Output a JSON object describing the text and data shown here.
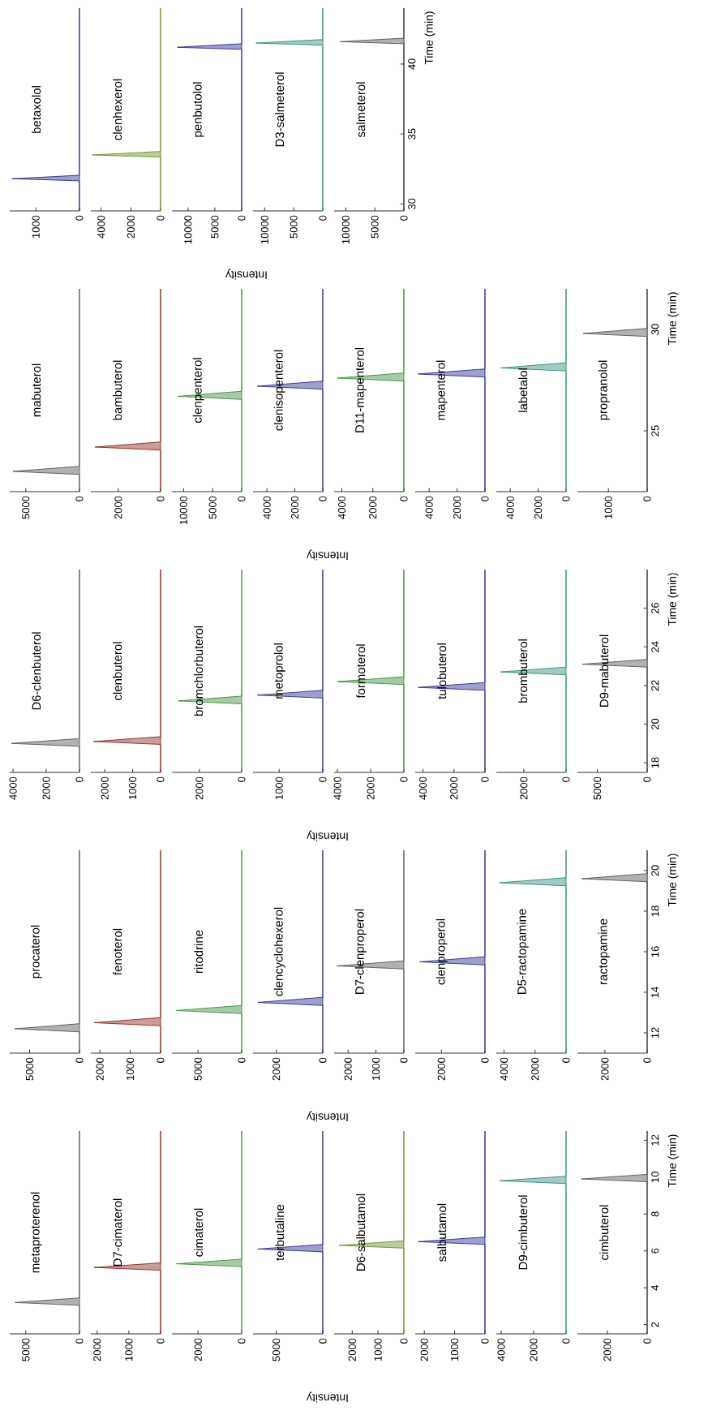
{
  "chart_data": [
    {
      "type": "area",
      "orientation": "horizontal",
      "title": "metaproterenol",
      "color": "#555555",
      "x": [
        1.5,
        3.05,
        3.2,
        3.45,
        12.5
      ],
      "values": [
        0,
        0,
        6000,
        0,
        0
      ],
      "ylim": [
        1.5,
        12.5
      ],
      "xlim": [
        6500,
        0
      ],
      "xticks": [
        5000,
        0
      ],
      "tick_labels": "x"
    },
    {
      "type": "area",
      "orientation": "horizontal",
      "title": "D7-cimaterol",
      "color": "#8b2323",
      "x": [
        1.5,
        4.95,
        5.1,
        5.35,
        12.5
      ],
      "values": [
        0,
        0,
        2100,
        0,
        0
      ],
      "ylim": [
        1.5,
        12.5
      ],
      "xlim": [
        2200,
        0
      ],
      "xticks": [
        2000,
        1000,
        0
      ],
      "tick_labels": "x"
    },
    {
      "type": "area",
      "orientation": "horizontal",
      "title": "cimaterol",
      "color": "#3c8c3c",
      "x": [
        1.5,
        5.15,
        5.3,
        5.55,
        12.5
      ],
      "values": [
        0,
        0,
        3000,
        0,
        0
      ],
      "ylim": [
        1.5,
        12.5
      ],
      "xlim": [
        3200,
        0
      ],
      "xticks": [
        2000,
        0
      ],
      "tick_labels": "x"
    },
    {
      "type": "area",
      "orientation": "horizontal",
      "title": "terbutaline",
      "color": "#2a2a8c",
      "x": [
        1.5,
        5.95,
        6.1,
        6.35,
        12.5
      ],
      "values": [
        0,
        0,
        7000,
        0,
        0
      ],
      "ylim": [
        1.5,
        12.5
      ],
      "xlim": [
        7500,
        0
      ],
      "xticks": [
        5000,
        0
      ],
      "tick_labels": "x",
      "xlabel": "Intensity"
    },
    {
      "type": "area",
      "orientation": "horizontal",
      "title": "D6-salbutamol",
      "color": "#6b8e23",
      "x": [
        1.5,
        6.15,
        6.3,
        6.55,
        12.5
      ],
      "values": [
        0,
        0,
        2500,
        0,
        0
      ],
      "ylim": [
        1.5,
        12.5
      ],
      "xlim": [
        2700,
        0
      ],
      "xticks": [
        2000,
        1000,
        0
      ],
      "tick_labels": "x"
    },
    {
      "type": "area",
      "orientation": "horizontal",
      "title": "salbutamol",
      "color": "#2a2a8c",
      "x": [
        1.5,
        6.35,
        6.5,
        6.75,
        12.5
      ],
      "values": [
        0,
        0,
        2200,
        0,
        0
      ],
      "ylim": [
        1.5,
        12.5
      ],
      "xlim": [
        2300,
        0
      ],
      "xticks": [
        2000,
        1000,
        0
      ],
      "tick_labels": "x"
    },
    {
      "type": "area",
      "orientation": "horizontal",
      "title": "D9-cimbuterol",
      "color": "#2e8b7a",
      "x": [
        1.5,
        9.65,
        9.8,
        10.05,
        12.5
      ],
      "values": [
        0,
        0,
        4100,
        0,
        0
      ],
      "ylim": [
        1.5,
        12.5
      ],
      "xlim": [
        4300,
        0
      ],
      "xticks": [
        4000,
        2000,
        0
      ],
      "tick_labels": "x"
    },
    {
      "type": "area",
      "orientation": "horizontal",
      "title": "cimbuterol",
      "color": "#555555",
      "x": [
        1.5,
        9.75,
        9.9,
        10.15,
        12.5
      ],
      "values": [
        0,
        0,
        3300,
        0,
        0
      ],
      "ylim": [
        1.5,
        12.5
      ],
      "xlim": [
        3500,
        0
      ],
      "xticks": [
        2000,
        0
      ],
      "yticks": [
        2,
        4,
        6,
        8,
        10,
        12
      ],
      "ylabel": "Time (min)"
    },
    {
      "type": "area",
      "orientation": "horizontal",
      "title": "procaterol",
      "color": "#555555",
      "x": [
        11,
        12.05,
        12.2,
        12.45,
        21
      ],
      "values": [
        0,
        0,
        6500,
        0,
        0
      ],
      "ylim": [
        11,
        21
      ],
      "xlim": [
        7000,
        0
      ],
      "xticks": [
        5000,
        0
      ],
      "tick_labels": "x"
    },
    {
      "type": "area",
      "orientation": "horizontal",
      "title": "fenoterol",
      "color": "#8b2323",
      "x": [
        11,
        12.35,
        12.5,
        12.75,
        21
      ],
      "values": [
        0,
        0,
        2200,
        0,
        0
      ],
      "ylim": [
        11,
        21
      ],
      "xlim": [
        2300,
        0
      ],
      "xticks": [
        2000,
        1000,
        0
      ],
      "tick_labels": "x"
    },
    {
      "type": "area",
      "orientation": "horizontal",
      "title": "ritodrine",
      "color": "#3c8c3c",
      "x": [
        11,
        12.95,
        13.1,
        13.35,
        21
      ],
      "values": [
        0,
        0,
        7500,
        0,
        0
      ],
      "ylim": [
        11,
        21
      ],
      "xlim": [
        8000,
        0
      ],
      "xticks": [
        5000,
        0
      ],
      "tick_labels": "x"
    },
    {
      "type": "area",
      "orientation": "horizontal",
      "title": "clencyclohexerol",
      "color": "#2a2a8c",
      "x": [
        11,
        13.35,
        13.5,
        13.75,
        21
      ],
      "values": [
        0,
        0,
        2800,
        0,
        0
      ],
      "ylim": [
        11,
        21
      ],
      "xlim": [
        3000,
        0
      ],
      "xticks": [
        2000,
        0
      ],
      "tick_labels": "x",
      "xlabel": "Intensity"
    },
    {
      "type": "area",
      "orientation": "horizontal",
      "title": "D7-clenproperol",
      "color": "#555555",
      "x": [
        11,
        15.15,
        15.3,
        15.55,
        21
      ],
      "values": [
        0,
        0,
        2400,
        0,
        0
      ],
      "ylim": [
        11,
        21
      ],
      "xlim": [
        2500,
        0
      ],
      "xticks": [
        2000,
        1000,
        0
      ],
      "tick_labels": "x"
    },
    {
      "type": "area",
      "orientation": "horizontal",
      "title": "clenproperol",
      "color": "#2a2a8c",
      "x": [
        11,
        15.35,
        15.5,
        15.75,
        21
      ],
      "values": [
        0,
        0,
        3000,
        0,
        0
      ],
      "ylim": [
        11,
        21
      ],
      "xlim": [
        3200,
        0
      ],
      "xticks": [
        2000,
        0
      ],
      "tick_labels": "x"
    },
    {
      "type": "area",
      "orientation": "horizontal",
      "title": "D5-ractopamine",
      "color": "#2e8b7a",
      "x": [
        11,
        19.25,
        19.4,
        19.65,
        21
      ],
      "values": [
        0,
        0,
        4300,
        0,
        0
      ],
      "ylim": [
        11,
        21
      ],
      "xlim": [
        4500,
        0
      ],
      "xticks": [
        4000,
        2000,
        0
      ],
      "tick_labels": "x"
    },
    {
      "type": "area",
      "orientation": "horizontal",
      "title": "ractopamine",
      "color": "#555555",
      "x": [
        11,
        19.45,
        19.6,
        19.85,
        21
      ],
      "values": [
        0,
        0,
        3100,
        0,
        0
      ],
      "ylim": [
        11,
        21
      ],
      "xlim": [
        3300,
        0
      ],
      "xticks": [
        2000,
        0
      ],
      "yticks": [
        12,
        14,
        16,
        18,
        20
      ],
      "ylabel": "Time (min)"
    },
    {
      "type": "area",
      "orientation": "horizontal",
      "title": "D6-clenbuterol",
      "color": "#555555",
      "x": [
        17.5,
        18.85,
        19.0,
        19.25,
        28
      ],
      "values": [
        0,
        0,
        4100,
        0,
        0
      ],
      "ylim": [
        17.5,
        28
      ],
      "xlim": [
        4200,
        0
      ],
      "xticks": [
        4000,
        2000,
        0
      ],
      "tick_labels": "x"
    },
    {
      "type": "area",
      "orientation": "horizontal",
      "title": "clenbuterol",
      "color": "#8b2323",
      "x": [
        17.5,
        18.95,
        19.1,
        19.35,
        28
      ],
      "values": [
        0,
        0,
        2400,
        0,
        0
      ],
      "ylim": [
        17.5,
        28
      ],
      "xlim": [
        2500,
        0
      ],
      "xticks": [
        2000,
        1000,
        0
      ],
      "tick_labels": "x"
    },
    {
      "type": "area",
      "orientation": "horizontal",
      "title": "bromchlorbuterol",
      "color": "#3c8c3c",
      "x": [
        17.5,
        21.05,
        21.2,
        21.45,
        28
      ],
      "values": [
        0,
        0,
        3000,
        0,
        0
      ],
      "ylim": [
        17.5,
        28
      ],
      "xlim": [
        3300,
        0
      ],
      "xticks": [
        2000,
        0
      ],
      "tick_labels": "x"
    },
    {
      "type": "area",
      "orientation": "horizontal",
      "title": "metoprolol",
      "color": "#2a2a8c",
      "x": [
        17.5,
        21.35,
        21.5,
        21.75,
        28
      ],
      "values": [
        0,
        0,
        1500,
        0,
        0
      ],
      "ylim": [
        17.5,
        28
      ],
      "xlim": [
        1600,
        0
      ],
      "xticks": [
        1000,
        0
      ],
      "tick_labels": "x",
      "xlabel": "Intensity"
    },
    {
      "type": "area",
      "orientation": "horizontal",
      "title": "formoterol",
      "color": "#3c8c3c",
      "x": [
        17.5,
        22.05,
        22.2,
        22.45,
        28
      ],
      "values": [
        0,
        0,
        4000,
        0,
        0
      ],
      "ylim": [
        17.5,
        28
      ],
      "xlim": [
        4200,
        0
      ],
      "xticks": [
        4000,
        2000,
        0
      ],
      "tick_labels": "x"
    },
    {
      "type": "area",
      "orientation": "horizontal",
      "title": "tulobuterol",
      "color": "#2a2a8c",
      "x": [
        17.5,
        21.75,
        21.9,
        22.15,
        28
      ],
      "values": [
        0,
        0,
        4300,
        0,
        0
      ],
      "ylim": [
        17.5,
        28
      ],
      "xlim": [
        4500,
        0
      ],
      "xticks": [
        4000,
        2000,
        0
      ],
      "tick_labels": "x"
    },
    {
      "type": "area",
      "orientation": "horizontal",
      "title": "brombuterol",
      "color": "#2e8b7a",
      "x": [
        17.5,
        22.55,
        22.7,
        22.95,
        28
      ],
      "values": [
        0,
        0,
        3100,
        0,
        0
      ],
      "ylim": [
        17.5,
        28
      ],
      "xlim": [
        3300,
        0
      ],
      "xticks": [
        2000,
        0
      ],
      "tick_labels": "x"
    },
    {
      "type": "area",
      "orientation": "horizontal",
      "title": "D9-mabuterol",
      "color": "#555555",
      "x": [
        17.5,
        22.95,
        23.1,
        23.35,
        28
      ],
      "values": [
        0,
        0,
        6500,
        0,
        0
      ],
      "ylim": [
        17.5,
        28
      ],
      "xlim": [
        7000,
        0
      ],
      "xticks": [
        5000,
        0
      ],
      "yticks": [
        18,
        20,
        22,
        24,
        26
      ],
      "ylabel": "Time (min)"
    },
    {
      "type": "area",
      "orientation": "horizontal",
      "title": "mabuterol",
      "color": "#555555",
      "x": [
        22,
        22.85,
        23.0,
        23.25,
        32
      ],
      "values": [
        0,
        0,
        6200,
        0,
        0
      ],
      "ylim": [
        22,
        32
      ],
      "xlim": [
        6500,
        0
      ],
      "xticks": [
        5000,
        0
      ],
      "tick_labels": "x"
    },
    {
      "type": "area",
      "orientation": "horizontal",
      "title": "bambuterol",
      "color": "#8b2323",
      "x": [
        22,
        24.05,
        24.2,
        24.45,
        32
      ],
      "values": [
        0,
        0,
        3100,
        0,
        0
      ],
      "ylim": [
        22,
        32
      ],
      "xlim": [
        3300,
        0
      ],
      "xticks": [
        2000,
        0
      ],
      "tick_labels": "x"
    },
    {
      "type": "area",
      "orientation": "horizontal",
      "title": "clenpenterol",
      "color": "#3c8c3c",
      "x": [
        22,
        26.55,
        26.7,
        26.95,
        32
      ],
      "values": [
        0,
        0,
        11000,
        0,
        0
      ],
      "ylim": [
        22,
        32
      ],
      "xlim": [
        12000,
        0
      ],
      "xticks": [
        10000,
        5000,
        0
      ],
      "tick_labels": "x"
    },
    {
      "type": "area",
      "orientation": "horizontal",
      "title": "clenisopenterol",
      "color": "#2a2a8c",
      "x": [
        22,
        27.05,
        27.2,
        27.45,
        32
      ],
      "values": [
        0,
        0,
        4700,
        0,
        0
      ],
      "ylim": [
        22,
        32
      ],
      "xlim": [
        5000,
        0
      ],
      "xticks": [
        4000,
        2000,
        0
      ],
      "tick_labels": "x",
      "xlabel": "Intensity"
    },
    {
      "type": "area",
      "orientation": "horizontal",
      "title": "D11-mapenterol",
      "color": "#3c8c3c",
      "x": [
        22,
        27.45,
        27.6,
        27.85,
        32
      ],
      "values": [
        0,
        0,
        4300,
        0,
        0
      ],
      "ylim": [
        22,
        32
      ],
      "xlim": [
        4500,
        0
      ],
      "xticks": [
        4000,
        2000,
        0
      ],
      "tick_labels": "x"
    },
    {
      "type": "area",
      "orientation": "horizontal",
      "title": "mapenterol",
      "color": "#2a2a8c",
      "x": [
        22,
        27.65,
        27.8,
        28.05,
        32
      ],
      "values": [
        0,
        0,
        4800,
        0,
        0
      ],
      "ylim": [
        22,
        32
      ],
      "xlim": [
        5000,
        0
      ],
      "xticks": [
        4000,
        2000,
        0
      ],
      "tick_labels": "x"
    },
    {
      "type": "area",
      "orientation": "horizontal",
      "title": "labetalol",
      "color": "#2e8b7a",
      "x": [
        22,
        27.95,
        28.1,
        28.35,
        32
      ],
      "values": [
        0,
        0,
        4700,
        0,
        0
      ],
      "ylim": [
        22,
        32
      ],
      "xlim": [
        5000,
        0
      ],
      "xticks": [
        4000,
        2000,
        0
      ],
      "tick_labels": "x"
    },
    {
      "type": "area",
      "orientation": "horizontal",
      "title": "propranolol",
      "color": "#555555",
      "x": [
        22,
        29.65,
        29.8,
        30.05,
        32
      ],
      "values": [
        0,
        0,
        1650,
        0,
        0
      ],
      "ylim": [
        22,
        32
      ],
      "xlim": [
        1800,
        0
      ],
      "xticks": [
        1000,
        0
      ],
      "yticks": [
        25,
        30
      ],
      "ylabel": "Time (min)"
    },
    {
      "type": "area",
      "orientation": "horizontal",
      "title": "betaxolol",
      "color": "#2a2a8c",
      "x": [
        29.5,
        31.65,
        31.8,
        32.05,
        44
      ],
      "values": [
        0,
        0,
        1550,
        0,
        0
      ],
      "ylim": [
        29.5,
        44
      ],
      "xlim": [
        1600,
        0
      ],
      "xticks": [
        1000,
        0
      ],
      "tick_labels": "x"
    },
    {
      "type": "area",
      "orientation": "horizontal",
      "title": "clenhexerol",
      "color": "#6b8e23",
      "x": [
        29.5,
        33.35,
        33.5,
        33.75,
        44
      ],
      "values": [
        0,
        0,
        4600,
        0,
        0
      ],
      "ylim": [
        29.5,
        44
      ],
      "xlim": [
        4700,
        0
      ],
      "xticks": [
        4000,
        2000,
        0
      ],
      "tick_labels": "x"
    },
    {
      "type": "area",
      "orientation": "horizontal",
      "title": "penbutolol",
      "color": "#2a2a8c",
      "x": [
        29.5,
        41.05,
        41.2,
        41.45,
        44
      ],
      "values": [
        0,
        0,
        12000,
        0,
        0
      ],
      "ylim": [
        29.5,
        44
      ],
      "xlim": [
        13000,
        0
      ],
      "xticks": [
        10000,
        5000,
        0
      ],
      "tick_labels": "x",
      "xlabel": "Intensity"
    },
    {
      "type": "area",
      "orientation": "horizontal",
      "title": "D3-salmeterol",
      "color": "#2e8b7a",
      "x": [
        29.5,
        41.35,
        41.5,
        41.75,
        44
      ],
      "values": [
        0,
        0,
        11500,
        0,
        0
      ],
      "ylim": [
        29.5,
        44
      ],
      "xlim": [
        12000,
        0
      ],
      "xticks": [
        10000,
        5000,
        0
      ],
      "tick_labels": "x"
    },
    {
      "type": "area",
      "orientation": "horizontal",
      "title": "salmeterol",
      "color": "#555555",
      "x": [
        29.5,
        41.45,
        41.6,
        41.85,
        44
      ],
      "values": [
        0,
        0,
        11000,
        0,
        0
      ],
      "ylim": [
        29.5,
        44
      ],
      "xlim": [
        12000,
        0
      ],
      "xticks": [
        10000,
        5000,
        0
      ],
      "yticks": [
        30,
        35,
        40
      ],
      "ylabel": "Time (min)"
    }
  ]
}
